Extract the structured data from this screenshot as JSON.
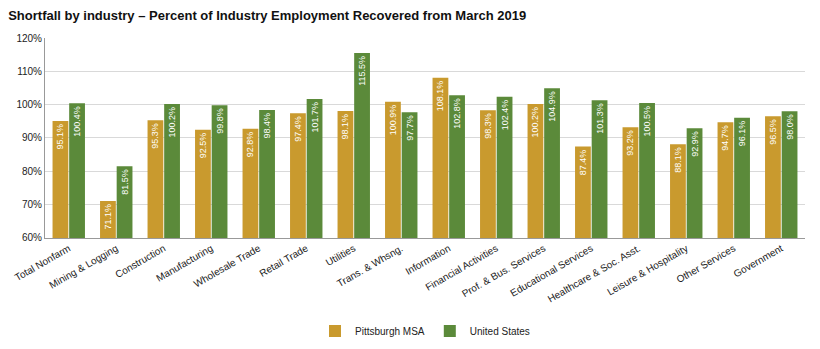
{
  "chart_data": {
    "type": "bar",
    "title": "Shortfall by industry – Percent of Industry Employment Recovered from March 2019",
    "categories": [
      "Total Nonfarm",
      "Mining & Logging",
      "Construction",
      "Manufacturing",
      "Wholesale Trade",
      "Retail Trade",
      "Utilities",
      "Trans. & Whsng.",
      "Information",
      "Financial Activities",
      "Prof. & Bus. Services",
      "Educational Services",
      "Healthcare & Soc. Asst.",
      "Leisure & Hospitality",
      "Other Services",
      "Government"
    ],
    "series": [
      {
        "name": "Pittsburgh MSA",
        "color": "#c99a2e",
        "values": [
          95.1,
          71.1,
          95.3,
          92.5,
          92.8,
          97.4,
          98.1,
          100.9,
          108.1,
          98.3,
          100.2,
          87.4,
          93.2,
          88.1,
          94.7,
          96.5
        ],
        "value_labels": [
          "95.1%",
          "71.1%",
          "95.3%",
          "92.5%",
          "92.8%",
          "97.4%",
          "98.1%",
          "100.9%",
          "108.1%",
          "98.3%",
          "100.2%",
          "87.4%",
          "93.2%",
          "88.1%",
          "94.7%",
          "96.5%"
        ]
      },
      {
        "name": "United States",
        "color": "#5b8a3a",
        "values": [
          100.4,
          81.5,
          100.2,
          99.8,
          98.4,
          101.7,
          115.5,
          97.7,
          102.8,
          102.4,
          104.9,
          101.3,
          100.5,
          92.9,
          96.1,
          98.0
        ],
        "value_labels": [
          "100.4%",
          "81.5%",
          "100.2%",
          "99.8%",
          "98.4%",
          "101.7%",
          "115.5%",
          "97.7%",
          "102.8%",
          "102.4%",
          "104.9%",
          "101.3%",
          "100.5%",
          "92.9%",
          "96.1%",
          "98.0%"
        ]
      }
    ],
    "ylim": [
      60,
      120
    ],
    "yticks": [
      {
        "value": 60,
        "label": "60%"
      },
      {
        "value": 70,
        "label": "70%"
      },
      {
        "value": 80,
        "label": "80%"
      },
      {
        "value": 90,
        "label": "90%"
      },
      {
        "value": 100,
        "label": "100%"
      },
      {
        "value": 110,
        "label": "110%"
      },
      {
        "value": 120,
        "label": "120%"
      }
    ],
    "grid": true,
    "legend": "bottom",
    "data_labels": true
  }
}
